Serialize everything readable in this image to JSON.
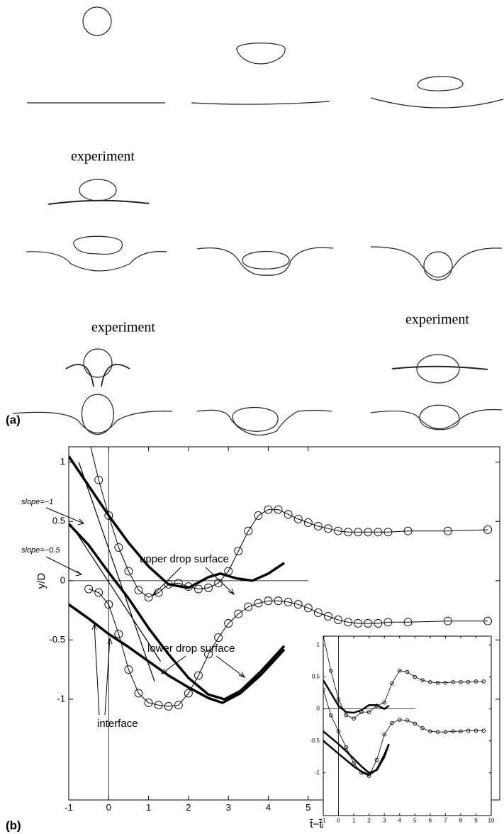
{
  "figure": {
    "panel_a_label": "(a)",
    "panel_b_label": "(b)",
    "experiment_labels": [
      "experiment",
      "experiment",
      "experiment"
    ]
  },
  "chart_data": [
    {
      "type": "line",
      "ylabel": "y/D",
      "xlabel": "t̄−t̄ᵢ",
      "annotations": [
        "slope=−1",
        "slope=−0.5",
        "upper drop surface",
        "lower drop surface",
        "interface"
      ],
      "xlim": [
        -1,
        9.8
      ],
      "ylim": [
        -1.85,
        1.13
      ],
      "xticks": [
        -1,
        0,
        1,
        2,
        3,
        4,
        5
      ],
      "yticks": [
        -1,
        -0.5,
        0,
        0.5,
        1
      ],
      "refline_x": 0,
      "refline_y": 0,
      "refline_y_end": 5,
      "color": "#000",
      "series": [
        {
          "x": [
            -1,
            -0.5,
            0,
            0.5,
            1,
            1.5,
            2,
            2.5,
            2.8,
            3.2,
            3.6,
            4,
            4.4
          ],
          "values": [
            1.05,
            0.8,
            0.55,
            0.32,
            0.12,
            -0.03,
            -0.06,
            0.03,
            0.06,
            0.02,
            0.0,
            0.06,
            0.15
          ],
          "width": 3.5
        },
        {
          "x": [
            -1,
            -0.5,
            0,
            0.5,
            1,
            1.5,
            2,
            2.5,
            2.9,
            3.3,
            3.8,
            4.4
          ],
          "values": [
            0.48,
            0.3,
            0.07,
            -0.15,
            -0.4,
            -0.62,
            -0.82,
            -0.96,
            -1.0,
            -0.93,
            -0.77,
            -0.55
          ],
          "width": 3.5
        },
        {
          "x": [
            -1,
            -0.5,
            0,
            0.5,
            1,
            1.5,
            2,
            2.5,
            2.85,
            3.3,
            3.8,
            4.4
          ],
          "values": [
            -0.2,
            -0.32,
            -0.45,
            -0.56,
            -0.68,
            -0.8,
            -0.9,
            -0.99,
            -1.03,
            -0.95,
            -0.8,
            -0.58
          ],
          "width": 3.5
        },
        {
          "x": [
            -0.75,
            1.15
          ],
          "values": [
            1.0,
            -0.85
          ],
          "width": 1.2
        },
        {
          "x": [
            -0.8,
            1.3
          ],
          "values": [
            0.4,
            -0.68
          ],
          "width": 1.2
        },
        {
          "x": [
            -0.5,
            -0.25,
            0,
            0.25,
            0.5,
            0.75,
            1,
            1.25,
            1.5,
            1.75,
            2,
            2.25,
            2.5,
            2.75,
            3,
            3.25,
            3.5,
            3.75,
            4,
            4.25,
            4.5,
            4.75,
            5,
            5.25,
            5.5,
            5.75,
            6,
            6.25,
            6.5,
            6.75,
            7,
            7.5,
            8.5,
            9.5
          ],
          "values": [
            1.2,
            0.85,
            0.55,
            0.28,
            0.08,
            -0.08,
            -0.14,
            -0.1,
            -0.03,
            -0.02,
            -0.05,
            -0.07,
            -0.06,
            -0.02,
            0.08,
            0.25,
            0.42,
            0.55,
            0.6,
            0.6,
            0.56,
            0.52,
            0.49,
            0.46,
            0.44,
            0.42,
            0.41,
            0.41,
            0.41,
            0.41,
            0.41,
            0.42,
            0.42,
            0.43
          ],
          "width": 1,
          "marker": "circle"
        },
        {
          "x": [
            -0.5,
            -0.25,
            0,
            0.25,
            0.5,
            0.75,
            1,
            1.25,
            1.5,
            1.75,
            2,
            2.25,
            2.5,
            2.75,
            3,
            3.25,
            3.5,
            3.75,
            4,
            4.25,
            4.5,
            4.75,
            5,
            5.25,
            5.5,
            5.75,
            6,
            6.25,
            6.5,
            6.75,
            7,
            7.5,
            8.5,
            9.5
          ],
          "values": [
            -0.07,
            -0.1,
            -0.2,
            -0.45,
            -0.75,
            -0.95,
            -1.03,
            -1.05,
            -1.06,
            -1.05,
            -0.95,
            -0.8,
            -0.62,
            -0.48,
            -0.36,
            -0.28,
            -0.22,
            -0.19,
            -0.17,
            -0.17,
            -0.18,
            -0.2,
            -0.23,
            -0.27,
            -0.3,
            -0.33,
            -0.35,
            -0.36,
            -0.36,
            -0.36,
            -0.35,
            -0.35,
            -0.34,
            -0.34
          ],
          "width": 1,
          "marker": "circle"
        }
      ]
    },
    {
      "type": "line",
      "xlim": [
        -1,
        10
      ],
      "ylim": [
        -1.67,
        1.14
      ],
      "xticks": [
        -1,
        0,
        1,
        2,
        3,
        4,
        5,
        6,
        7,
        8,
        9,
        10
      ],
      "yticks": [
        -1,
        -0.5,
        0,
        0.5,
        1
      ],
      "refline_x": 0,
      "refline_y": 0,
      "refline_y_end": 5,
      "color": "#000",
      "series": [
        {
          "x": [
            -1,
            -0.5,
            0,
            0.5,
            1,
            1.5,
            2,
            2.5,
            3,
            3.3
          ],
          "values": [
            0.45,
            0.25,
            0.05,
            -0.05,
            -0.06,
            -0.02,
            0.06,
            0.06,
            0.0,
            0.05
          ],
          "width": 2.5
        },
        {
          "x": [
            -1,
            -0.5,
            0,
            0.5,
            1,
            1.5,
            2,
            2.5,
            3,
            3.3
          ],
          "values": [
            -0.35,
            -0.45,
            -0.55,
            -0.66,
            -0.78,
            -0.9,
            -1.0,
            -0.96,
            -0.75,
            -0.55
          ],
          "width": 2.5
        },
        {
          "x": [
            -1,
            -0.5,
            0,
            0.5,
            1,
            1.5,
            2,
            2.5,
            3,
            3.3
          ],
          "values": [
            -0.5,
            -0.6,
            -0.7,
            -0.8,
            -0.9,
            -0.98,
            -1.03,
            -0.95,
            -0.72,
            -0.55
          ],
          "width": 2.5
        },
        {
          "x": [
            -1,
            -0.5,
            0,
            0.5,
            1,
            1.5,
            2,
            2.5,
            3,
            3.5,
            4,
            4.5,
            5,
            5.5,
            6,
            6.5,
            7,
            7.5,
            8,
            8.5,
            9,
            9.5
          ],
          "values": [
            1.15,
            0.6,
            0.15,
            -0.1,
            -0.15,
            -0.05,
            -0.05,
            0.05,
            0.1,
            0.4,
            0.6,
            0.58,
            0.5,
            0.45,
            0.42,
            0.41,
            0.41,
            0.42,
            0.42,
            0.42,
            0.43,
            0.43
          ],
          "width": 0.8,
          "marker": "circle"
        },
        {
          "x": [
            -1,
            -0.5,
            0,
            0.5,
            1,
            1.5,
            2,
            2.5,
            3,
            3.5,
            4,
            4.5,
            5,
            5.5,
            6,
            6.5,
            7,
            7.5,
            8,
            8.5,
            9,
            9.5
          ],
          "values": [
            0.3,
            -0.1,
            -0.35,
            -0.6,
            -0.85,
            -1.0,
            -1.05,
            -0.8,
            -0.4,
            -0.22,
            -0.17,
            -0.18,
            -0.23,
            -0.3,
            -0.35,
            -0.36,
            -0.36,
            -0.35,
            -0.35,
            -0.34,
            -0.34,
            -0.34
          ],
          "width": 0.8,
          "marker": "circle"
        }
      ]
    }
  ]
}
